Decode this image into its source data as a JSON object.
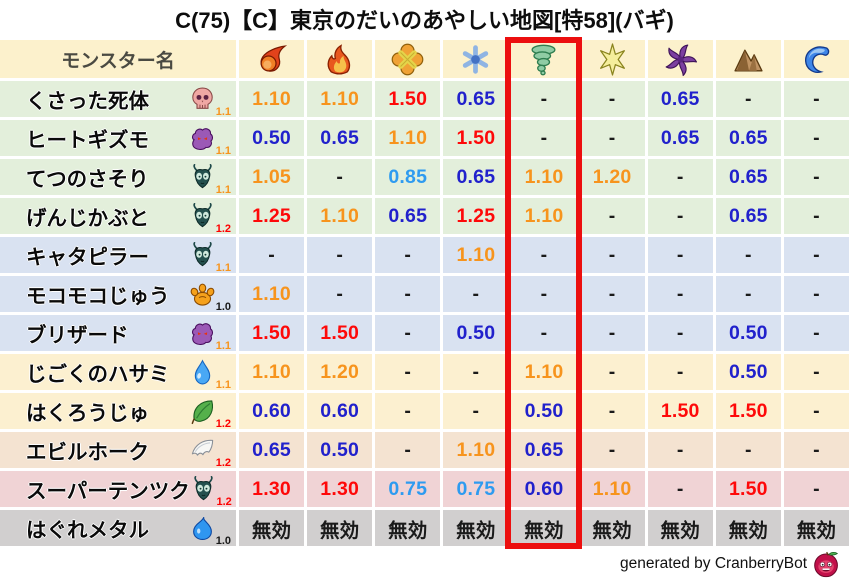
{
  "title": "C(75)【C】東京のだいのあやしい地図[特58](バギ)",
  "chart_data": {
    "type": "table",
    "title": "C(75)【C】東京のだいのあやしい地図[特58](バギ)",
    "name_column_header": "モンスター名",
    "element_columns": [
      "fireball-icon",
      "flame-icon",
      "burst-icon",
      "snowflake-icon",
      "tornado-icon",
      "spark-icon",
      "pinwheel-icon",
      "mountain-icon",
      "wave-icon"
    ],
    "highlighted_column_index": 4,
    "rows": [
      {
        "name": "くさった死体",
        "icon": "skull-icon",
        "badge": "1.1",
        "group": "green",
        "values": [
          "1.10",
          "1.10",
          "1.50",
          "0.65",
          "-",
          "-",
          "0.65",
          "-",
          "-"
        ]
      },
      {
        "name": "ヒートギズモ",
        "icon": "gizmo-icon",
        "badge": "1.1",
        "group": "green",
        "values": [
          "0.50",
          "0.65",
          "1.10",
          "1.50",
          "-",
          "-",
          "0.65",
          "0.65",
          "-"
        ]
      },
      {
        "name": "てつのさそり",
        "icon": "bug-icon",
        "badge": "1.1",
        "group": "green",
        "values": [
          "1.05",
          "-",
          "0.85",
          "0.65",
          "1.10",
          "1.20",
          "-",
          "0.65",
          "-"
        ]
      },
      {
        "name": "げんじかぶと",
        "icon": "bug-icon",
        "badge": "1.2",
        "group": "green",
        "values": [
          "1.25",
          "1.10",
          "0.65",
          "1.25",
          "1.10",
          "-",
          "-",
          "0.65",
          "-"
        ]
      },
      {
        "name": "キャタピラー",
        "icon": "bug-icon",
        "badge": "1.1",
        "group": "blue",
        "values": [
          "-",
          "-",
          "-",
          "1.10",
          "-",
          "-",
          "-",
          "-",
          "-"
        ]
      },
      {
        "name": "モコモコじゅう",
        "icon": "paw-icon",
        "badge": "1.0",
        "group": "blue",
        "values": [
          "1.10",
          "-",
          "-",
          "-",
          "-",
          "-",
          "-",
          "-",
          "-"
        ]
      },
      {
        "name": "ブリザード",
        "icon": "gizmo-icon",
        "badge": "1.1",
        "group": "blue",
        "values": [
          "1.50",
          "1.50",
          "-",
          "0.50",
          "-",
          "-",
          "-",
          "0.50",
          "-"
        ]
      },
      {
        "name": "じごくのハサミ",
        "icon": "droplet-icon",
        "badge": "1.1",
        "group": "cream",
        "values": [
          "1.10",
          "1.20",
          "-",
          "-",
          "1.10",
          "-",
          "-",
          "0.50",
          "-"
        ]
      },
      {
        "name": "はくろうじゅ",
        "icon": "leaf-icon",
        "badge": "1.2",
        "group": "cream",
        "values": [
          "0.60",
          "0.60",
          "-",
          "-",
          "0.50",
          "-",
          "1.50",
          "1.50",
          "-"
        ]
      },
      {
        "name": "エビルホーク",
        "icon": "wing-icon",
        "badge": "1.2",
        "group": "peach",
        "values": [
          "0.65",
          "0.50",
          "-",
          "1.10",
          "0.65",
          "-",
          "-",
          "-",
          "-"
        ]
      },
      {
        "name": "スーパーテンツク",
        "icon": "bug-icon",
        "badge": "1.2",
        "group": "pink",
        "values": [
          "1.30",
          "1.30",
          "0.75",
          "0.75",
          "0.60",
          "1.10",
          "-",
          "1.50",
          "-"
        ]
      },
      {
        "name": "はぐれメタル",
        "icon": "slime-icon",
        "badge": "1.0",
        "group": "gray",
        "values": [
          "無効",
          "無効",
          "無効",
          "無効",
          "無効",
          "無効",
          "無効",
          "無効",
          "無効"
        ]
      }
    ]
  },
  "footer": {
    "credit": "generated by CranberryBot",
    "icon": "cranberry-icon"
  },
  "colors": {
    "strong_weakness": "#FE0909",
    "weakness": "#F7941D",
    "light_resist": "#2E9BF0",
    "resist": "#2121CC",
    "neutral": "#1A1A1A",
    "highlight_box": "#EC0F0F",
    "header_bg": "#FCF1CC",
    "row_groups": {
      "green": "#E3EFDB",
      "blue": "#D9E2F1",
      "cream": "#FCF0D0",
      "peach": "#F4E3D1",
      "pink": "#F0D3D5",
      "gray": "#D1CFCF"
    },
    "badge_colors": {
      "1.0": "#1A1A1A",
      "1.1": "#F7941D",
      "1.2": "#FE0000"
    }
  }
}
